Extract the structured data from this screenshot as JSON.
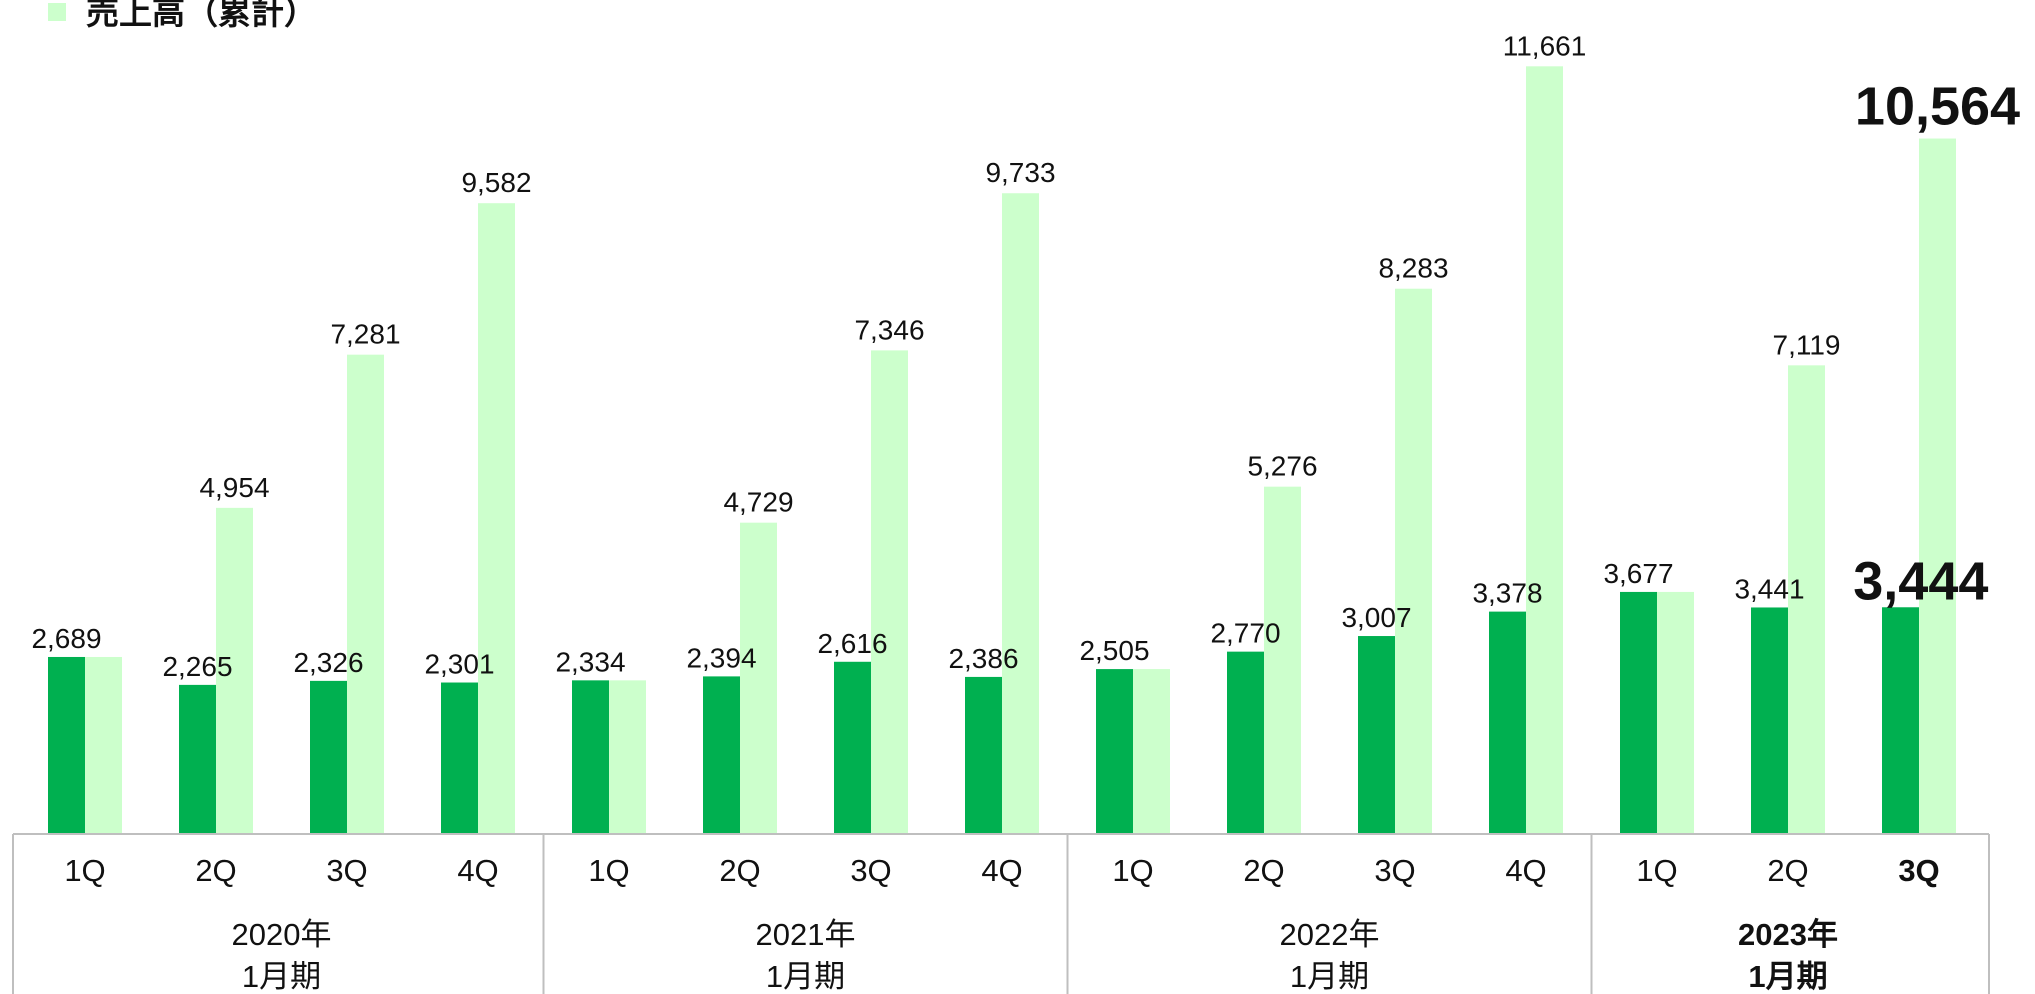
{
  "chart_data": {
    "type": "bar",
    "title": "",
    "xlabel": "",
    "ylabel": "",
    "ylim": [
      0,
      12000
    ],
    "grid": false,
    "legend": {
      "position": "top-left",
      "visible_entry": "売上高（累計）"
    },
    "colors": {
      "quarterly": "#00b050",
      "cumulative": "#ccffcc",
      "axis": "#bfbfbf"
    },
    "categories": [
      "1Q",
      "2Q",
      "3Q",
      "4Q",
      "1Q",
      "2Q",
      "3Q",
      "4Q",
      "1Q",
      "2Q",
      "3Q",
      "4Q",
      "1Q",
      "2Q",
      "3Q"
    ],
    "groups": [
      {
        "year": "2020年",
        "period": "1月期",
        "bold": false
      },
      {
        "year": "2021年",
        "period": "1月期",
        "bold": false
      },
      {
        "year": "2022年",
        "period": "1月期",
        "bold": false
      },
      {
        "year": "2023年",
        "period": "1月期",
        "bold": true
      }
    ],
    "series": [
      {
        "values": [
          2689,
          2265,
          2326,
          2301,
          2334,
          2394,
          2616,
          2386,
          2505,
          2770,
          3007,
          3378,
          3677,
          3441,
          3444
        ]
      },
      {
        "name": "売上高（累計）",
        "values": [
          2689,
          4954,
          7281,
          9582,
          2334,
          4729,
          7346,
          9733,
          2505,
          5276,
          8283,
          11661,
          3677,
          7119,
          10564
        ]
      }
    ],
    "labels_quarterly": [
      "2,689",
      "2,265",
      "2,326",
      "2,301",
      "2,334",
      "2,394",
      "2,616",
      "2,386",
      "2,505",
      "2,770",
      "3,007",
      "3,378",
      "3,677",
      "3,441",
      "3,444"
    ],
    "labels_cumulative": [
      "",
      "4,954",
      "7,281",
      "9,582",
      "",
      "4,729",
      "7,346",
      "9,733",
      "",
      "5,276",
      "8,283",
      "11,661",
      "",
      "7,119",
      "10,564"
    ],
    "highlight_index": 14
  }
}
